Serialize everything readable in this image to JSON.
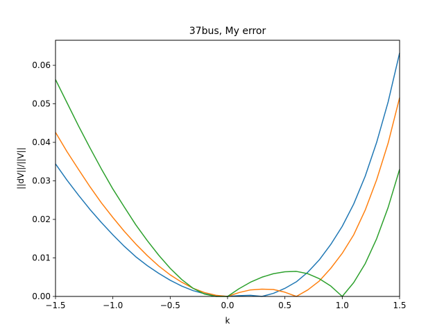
{
  "chart_data": {
    "type": "line",
    "title": "37bus, My error",
    "xlabel": "k",
    "ylabel": "||dV||/||V||",
    "xlim": [
      -1.5,
      1.5
    ],
    "ylim": [
      0,
      0.0665
    ],
    "xticks": [
      -1.5,
      -1.0,
      -0.5,
      0.0,
      0.5,
      1.0,
      1.5
    ],
    "xtick_labels": [
      "−1.5",
      "−1.0",
      "−0.5",
      "0.0",
      "0.5",
      "1.0",
      "1.5"
    ],
    "yticks": [
      0.0,
      0.01,
      0.02,
      0.03,
      0.04,
      0.05,
      0.06
    ],
    "ytick_labels": [
      "0.00",
      "0.01",
      "0.02",
      "0.03",
      "0.04",
      "0.05",
      "0.06"
    ],
    "grid": false,
    "legend": "none",
    "x": [
      -1.5,
      -1.4,
      -1.3,
      -1.2,
      -1.1,
      -1.0,
      -0.9,
      -0.8,
      -0.7,
      -0.6,
      -0.5,
      -0.4,
      -0.3,
      -0.2,
      -0.1,
      0.0,
      0.1,
      0.2,
      0.3,
      0.4,
      0.5,
      0.6,
      0.7,
      0.8,
      0.9,
      1.0,
      1.1,
      1.2,
      1.3,
      1.4,
      1.5
    ],
    "series": [
      {
        "color": "#1f77b4",
        "values": [
          0.0344,
          0.0302,
          0.0263,
          0.0226,
          0.0192,
          0.016,
          0.013,
          0.0103,
          0.008,
          0.006,
          0.0042,
          0.0027,
          0.0015,
          0.0007,
          0.0002,
          0.0,
          0.0002,
          0.0003,
          0.0,
          0.0008,
          0.0021,
          0.0038,
          0.0063,
          0.0095,
          0.0135,
          0.0182,
          0.024,
          0.0312,
          0.04,
          0.0505,
          0.0632
        ]
      },
      {
        "color": "#ff7f0e",
        "values": [
          0.0426,
          0.0376,
          0.033,
          0.0285,
          0.0243,
          0.0205,
          0.0169,
          0.0136,
          0.0106,
          0.0079,
          0.0056,
          0.0037,
          0.0021,
          0.001,
          0.0003,
          0.0,
          0.001,
          0.0017,
          0.0019,
          0.0018,
          0.0011,
          0.0,
          0.0017,
          0.004,
          0.0073,
          0.0112,
          0.016,
          0.0224,
          0.0303,
          0.0398,
          0.0516
        ]
      },
      {
        "color": "#2ca02c",
        "values": [
          0.0563,
          0.0503,
          0.0443,
          0.0386,
          0.0331,
          0.0279,
          0.0232,
          0.0186,
          0.0145,
          0.0107,
          0.0073,
          0.0044,
          0.0021,
          0.0006,
          0.0,
          0.0,
          0.002,
          0.0037,
          0.005,
          0.0059,
          0.0064,
          0.0065,
          0.0059,
          0.0046,
          0.0027,
          0.0,
          0.0036,
          0.0085,
          0.015,
          0.0231,
          0.033
        ]
      }
    ]
  }
}
